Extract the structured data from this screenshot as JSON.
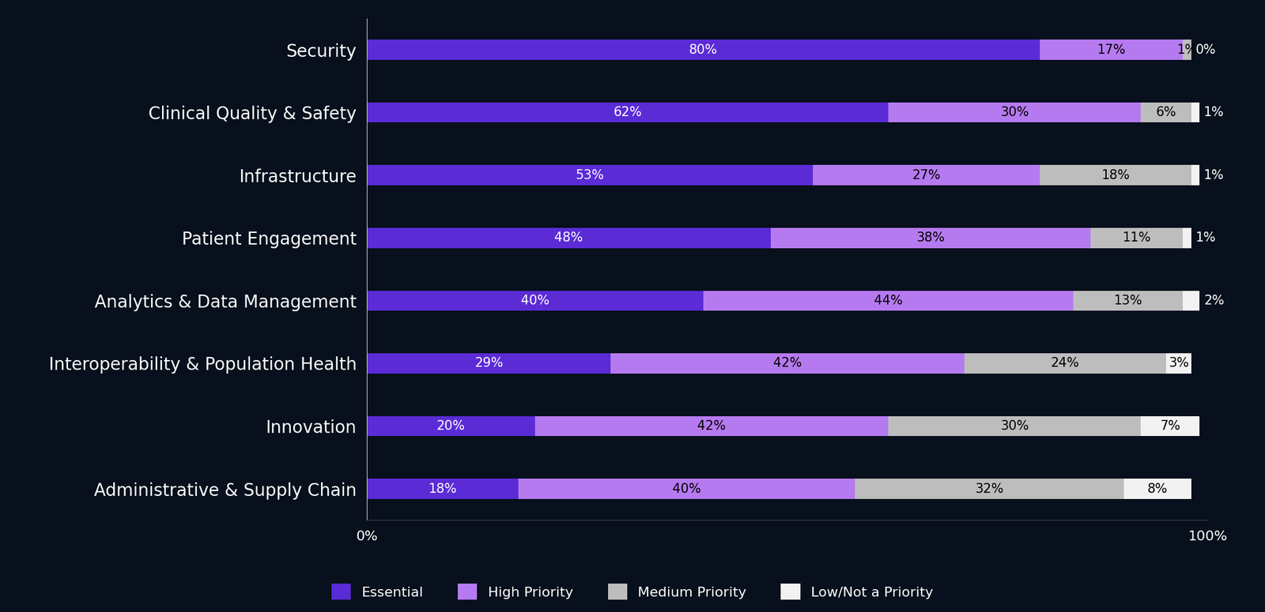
{
  "chart_data": {
    "type": "bar",
    "orientation": "horizontal",
    "stacked": true,
    "data_labels": true,
    "grid": false,
    "legend": "lower center",
    "categories": [
      "Security",
      "Clinical Quality & Safety",
      "Infrastructure",
      "Patient Engagement",
      "Analytics & Data Management",
      "Interoperability & Population Health",
      "Innovation",
      "Administrative & Supply Chain"
    ],
    "xlim": [
      0,
      100
    ],
    "xticks": [
      {
        "value": 0,
        "label": "0%"
      },
      {
        "value": 100,
        "label": "100%"
      }
    ],
    "series": [
      {
        "name": "Essential",
        "color": "#5b2bd6",
        "values": [
          80,
          62,
          53,
          48,
          40,
          29,
          20,
          18
        ],
        "value_labels": [
          "80%",
          "62%",
          "53%",
          "48%",
          "40%",
          "29%",
          "20%",
          "18%"
        ]
      },
      {
        "name": "High Priority",
        "color": "#b67af0",
        "values": [
          17,
          30,
          27,
          38,
          44,
          42,
          42,
          40
        ],
        "value_labels": [
          "17%",
          "30%",
          "27%",
          "38%",
          "44%",
          "42%",
          "42%",
          "40%"
        ]
      },
      {
        "name": "Medium Priority",
        "color": "#bdbdbd",
        "values": [
          1,
          6,
          18,
          11,
          13,
          24,
          30,
          32
        ],
        "value_labels": [
          "1%",
          "6%",
          "18%",
          "11%",
          "13%",
          "24%",
          "30%",
          "32%"
        ]
      },
      {
        "name": "Low/Not a Priority",
        "color": "#f2f2f2",
        "values": [
          0,
          1,
          1,
          1,
          2,
          3,
          7,
          8
        ],
        "value_labels": [
          "0%",
          "1%",
          "1%",
          "1%",
          "2%",
          "3%",
          "7%",
          "8%"
        ]
      }
    ]
  }
}
